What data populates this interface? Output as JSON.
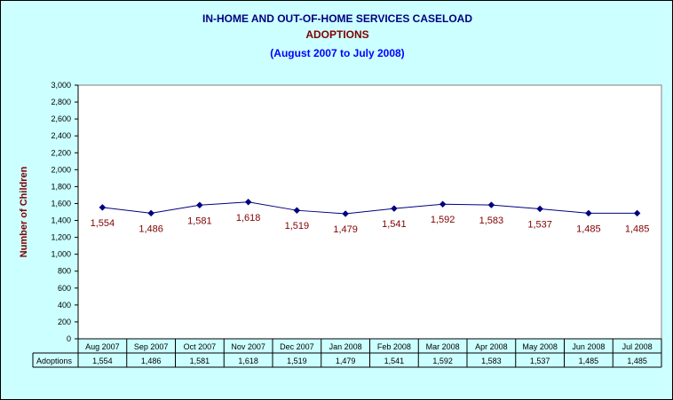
{
  "header": {
    "title": "IN-HOME AND OUT-OF-HOME SERVICES CASELOAD",
    "subtitle": "ADOPTIONS",
    "period": "(August 2007 to July 2008)"
  },
  "colors": {
    "background": "#ccffff",
    "title": "#000080",
    "subtitle": "#800000",
    "period": "#0000ff",
    "line": "#000080",
    "data_label": "#800000",
    "ylabel": "#800000"
  },
  "chart_data": {
    "type": "line",
    "title": "IN-HOME AND OUT-OF-HOME SERVICES CASELOAD",
    "xlabel": "",
    "ylabel": "Number of Children",
    "categories": [
      "Aug 2007",
      "Sep 2007",
      "Oct 2007",
      "Nov 2007",
      "Dec 2007",
      "Jan 2008",
      "Feb 2008",
      "Mar 2008",
      "Apr 2008",
      "May 2008",
      "Jun 2008",
      "Jul 2008"
    ],
    "series": [
      {
        "name": "Adoptions",
        "values": [
          1554,
          1486,
          1581,
          1618,
          1519,
          1479,
          1541,
          1592,
          1583,
          1537,
          1485,
          1485
        ],
        "labels": [
          "1,554",
          "1,486",
          "1,581",
          "1,618",
          "1,519",
          "1,479",
          "1,541",
          "1,592",
          "1,583",
          "1,537",
          "1,485",
          "1,485"
        ],
        "marker": "diamond"
      }
    ],
    "ylim": [
      0,
      3000
    ],
    "yticks": [
      0,
      200,
      400,
      600,
      800,
      1000,
      1200,
      1400,
      1600,
      1800,
      2000,
      2200,
      2400,
      2600,
      2800,
      3000
    ],
    "ytick_labels": [
      "0",
      "200",
      "400",
      "600",
      "800",
      "1,000",
      "1,200",
      "1,400",
      "1,600",
      "1,800",
      "2,000",
      "2,200",
      "2,400",
      "2,600",
      "2,800",
      "3,000"
    ],
    "grid": false,
    "legend": "data table",
    "data_table": true
  }
}
